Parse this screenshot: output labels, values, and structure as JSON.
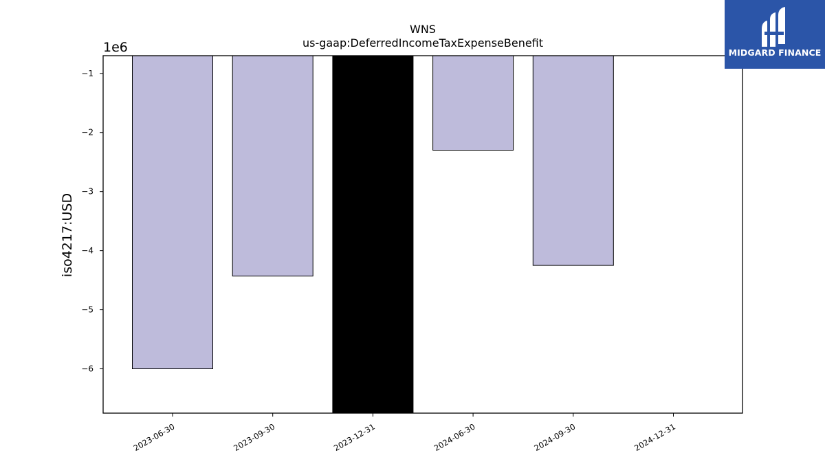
{
  "chart_data": {
    "type": "bar",
    "title": "WNS",
    "subtitle": "us-gaap:DeferredIncomeTaxExpenseBenefit",
    "ylabel": "iso4217:USD",
    "xlabel": "",
    "y_scale_label": "1e6",
    "categories": [
      "2023-06-30",
      "2023-09-30",
      "2023-12-31",
      "2024-06-30",
      "2024-09-30",
      "2024-12-31"
    ],
    "values": [
      -6000000,
      -4430000,
      -6750000,
      -2300000,
      -4250000,
      -700000
    ],
    "highlight_index": 2,
    "yticks": [
      -1,
      -2,
      -3,
      -4,
      -5,
      -6
    ],
    "ylim": [
      -6.75,
      -0.7
    ],
    "grid": false,
    "bar_color": "#bebbdb",
    "highlight_color": "#000000"
  },
  "logo": {
    "text": "MIDGARD FINANCE",
    "background": "#2b55a8"
  }
}
